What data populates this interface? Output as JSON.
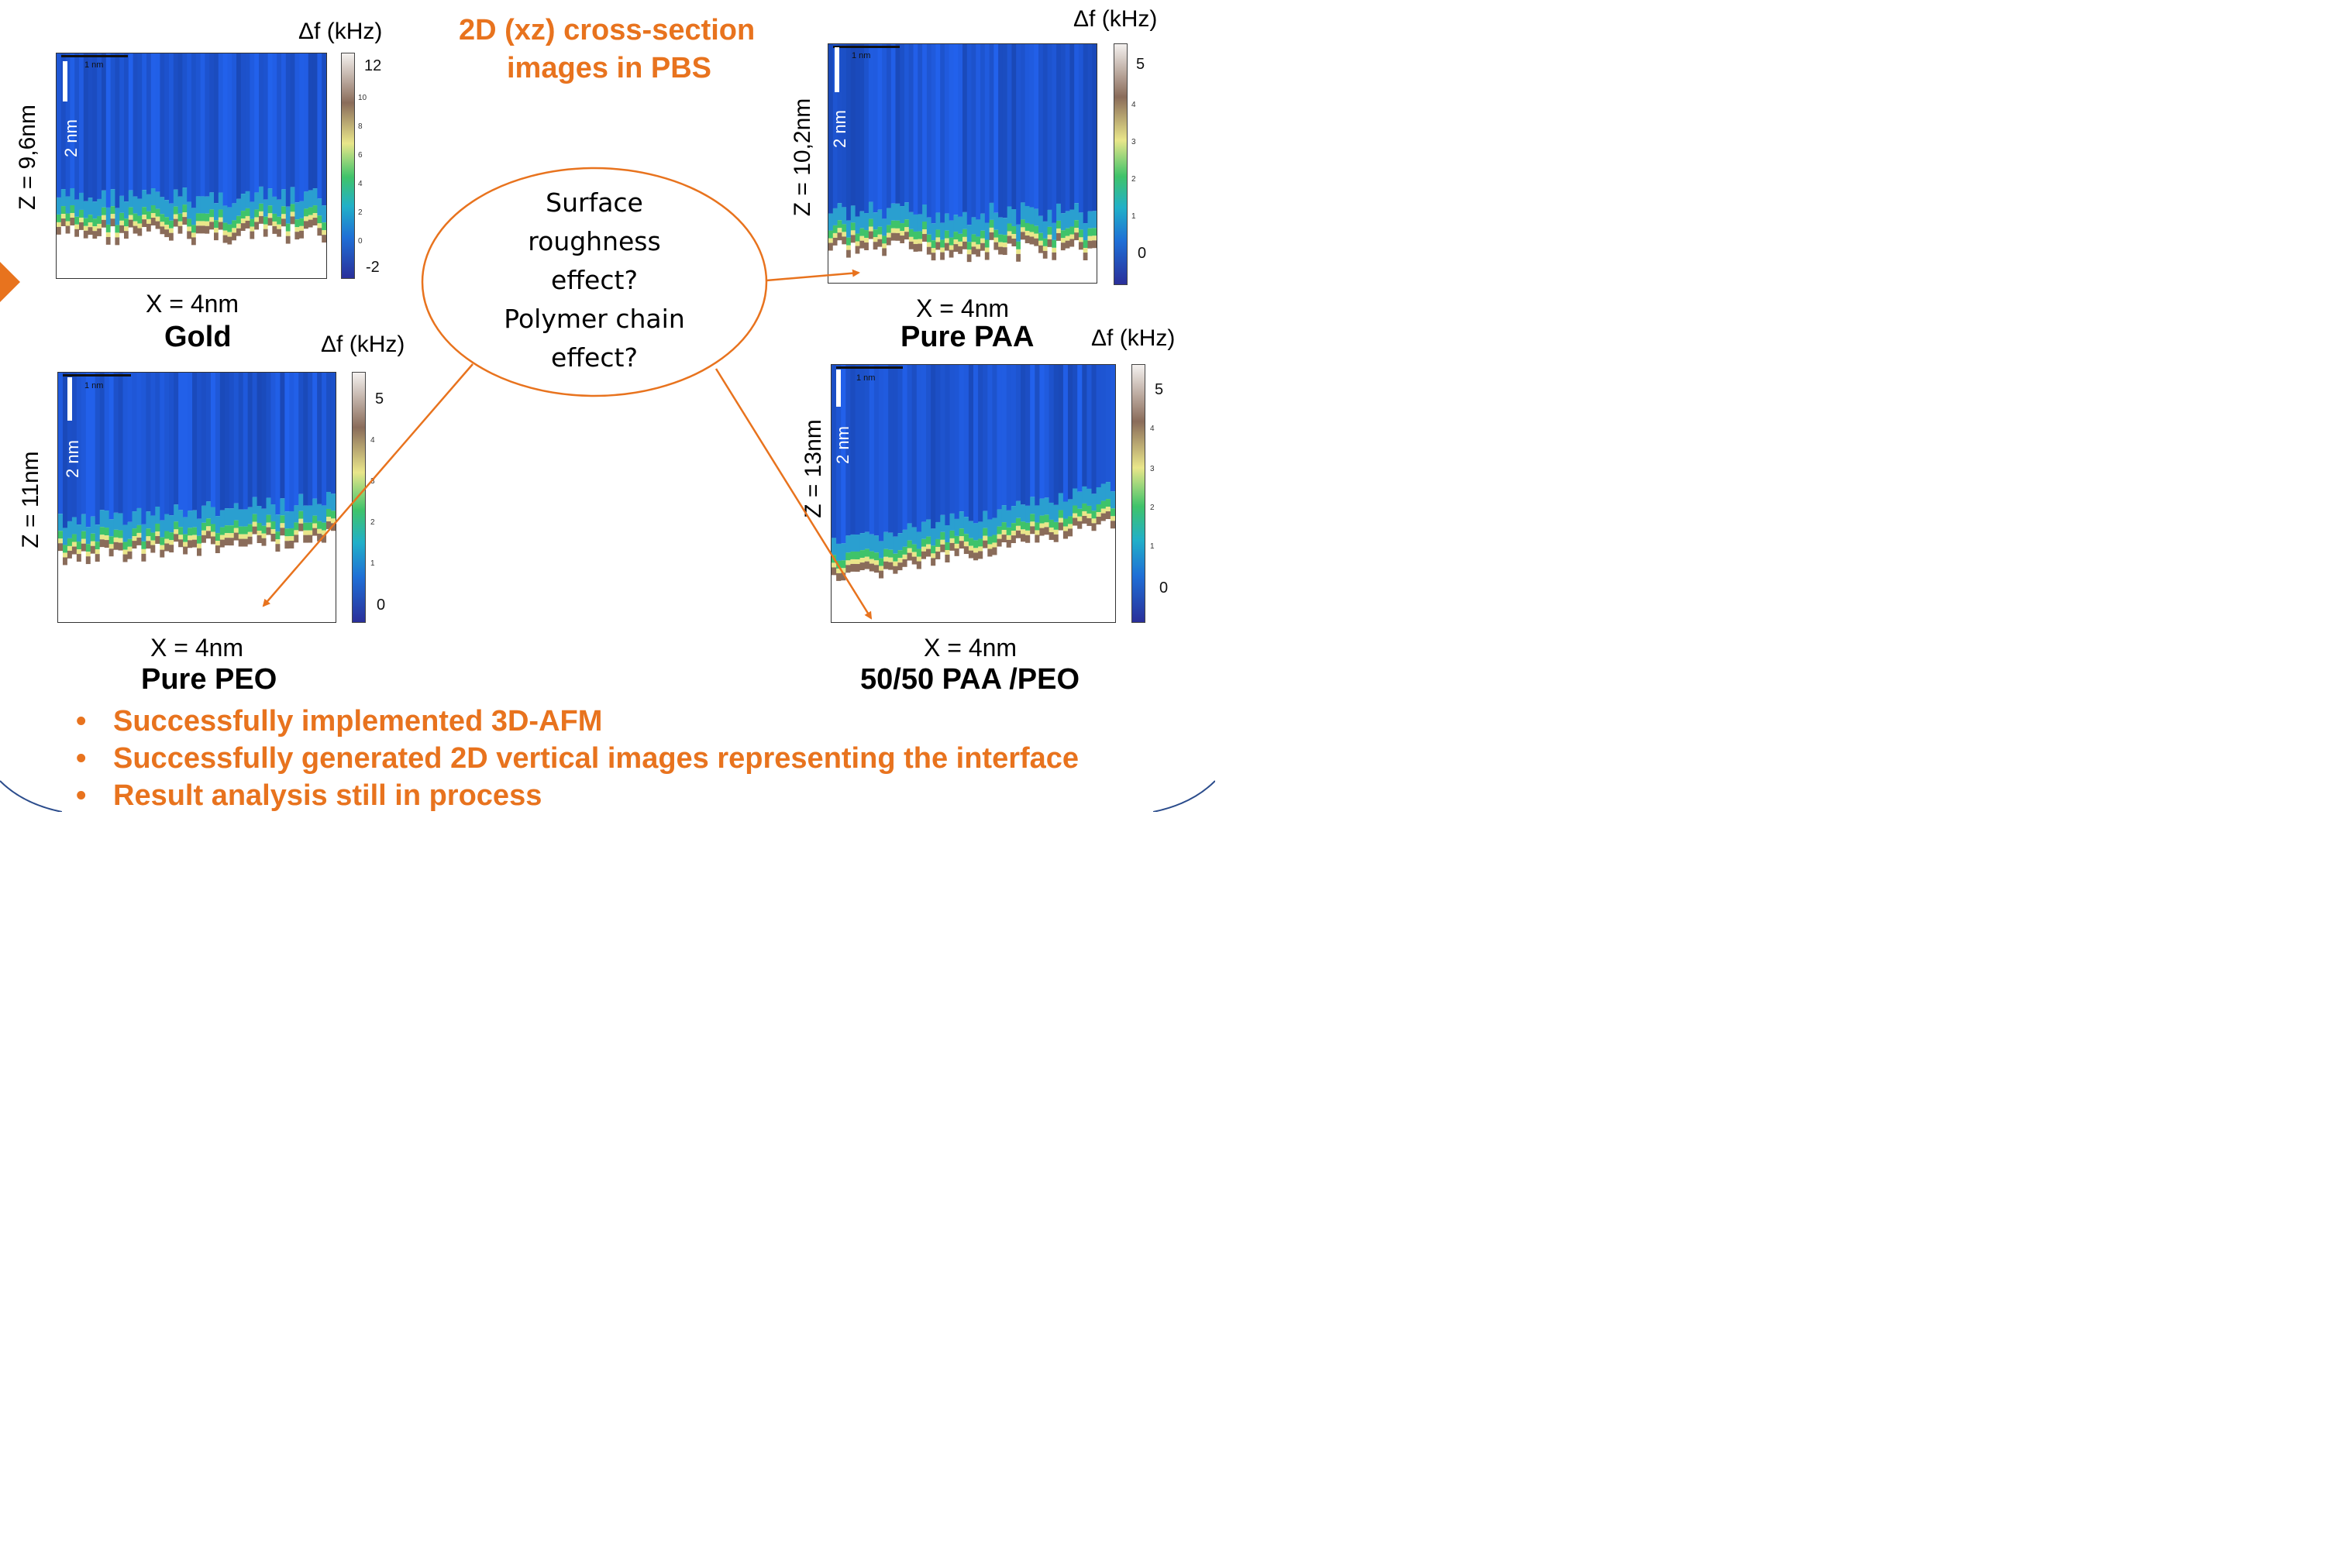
{
  "title_line1": "2D (xz) cross-section",
  "title_line2": "images in PBS",
  "center_question": {
    "line1": "Surface",
    "line2": "roughness",
    "line3": "effect?",
    "line4": "Polymer chain",
    "line5": "effect?"
  },
  "colorbar_label": "Δf (kHz)",
  "scalebar_h_label": "1 nm",
  "scalebar_v_label": "2 nm",
  "panels": {
    "gold": {
      "z_label": "Z = 9,6nm",
      "x_label": "X = 4nm",
      "name": "Gold",
      "cb_top": "12",
      "cb_bottom": "-2",
      "cb_ticks": [
        "10",
        "8",
        "6",
        "4",
        "2",
        "0"
      ]
    },
    "paa": {
      "z_label": "Z = 10,2nm",
      "x_label": "X = 4nm",
      "name": "Pure PAA",
      "cb_top": "5",
      "cb_bottom": "0",
      "cb_ticks": [
        "4",
        "3",
        "2",
        "1"
      ]
    },
    "peo": {
      "z_label": "Z = 11nm",
      "x_label": "X = 4nm",
      "name": "Pure PEO",
      "cb_top": "5",
      "cb_bottom": "0",
      "cb_ticks": [
        "4",
        "3",
        "2",
        "1"
      ]
    },
    "mix": {
      "z_label": "Z = 13nm",
      "x_label": "X = 4nm",
      "name": "50/50 PAA /PEO",
      "cb_top": "5",
      "cb_bottom": "0",
      "cb_ticks": [
        "4",
        "3",
        "2",
        "1"
      ]
    }
  },
  "bullets": [
    "Successfully implemented 3D-AFM",
    "Successfully generated 2D vertical images representing the interface",
    "Result analysis still in process"
  ],
  "bullet_symbol": "•",
  "colors": {
    "accent": "#E8731E",
    "heatmap_top": "#1f55c8",
    "heatmap_green": "#3fc36a",
    "heatmap_yellow": "#e9e68a",
    "heatmap_brown": "#8a6c5a"
  }
}
